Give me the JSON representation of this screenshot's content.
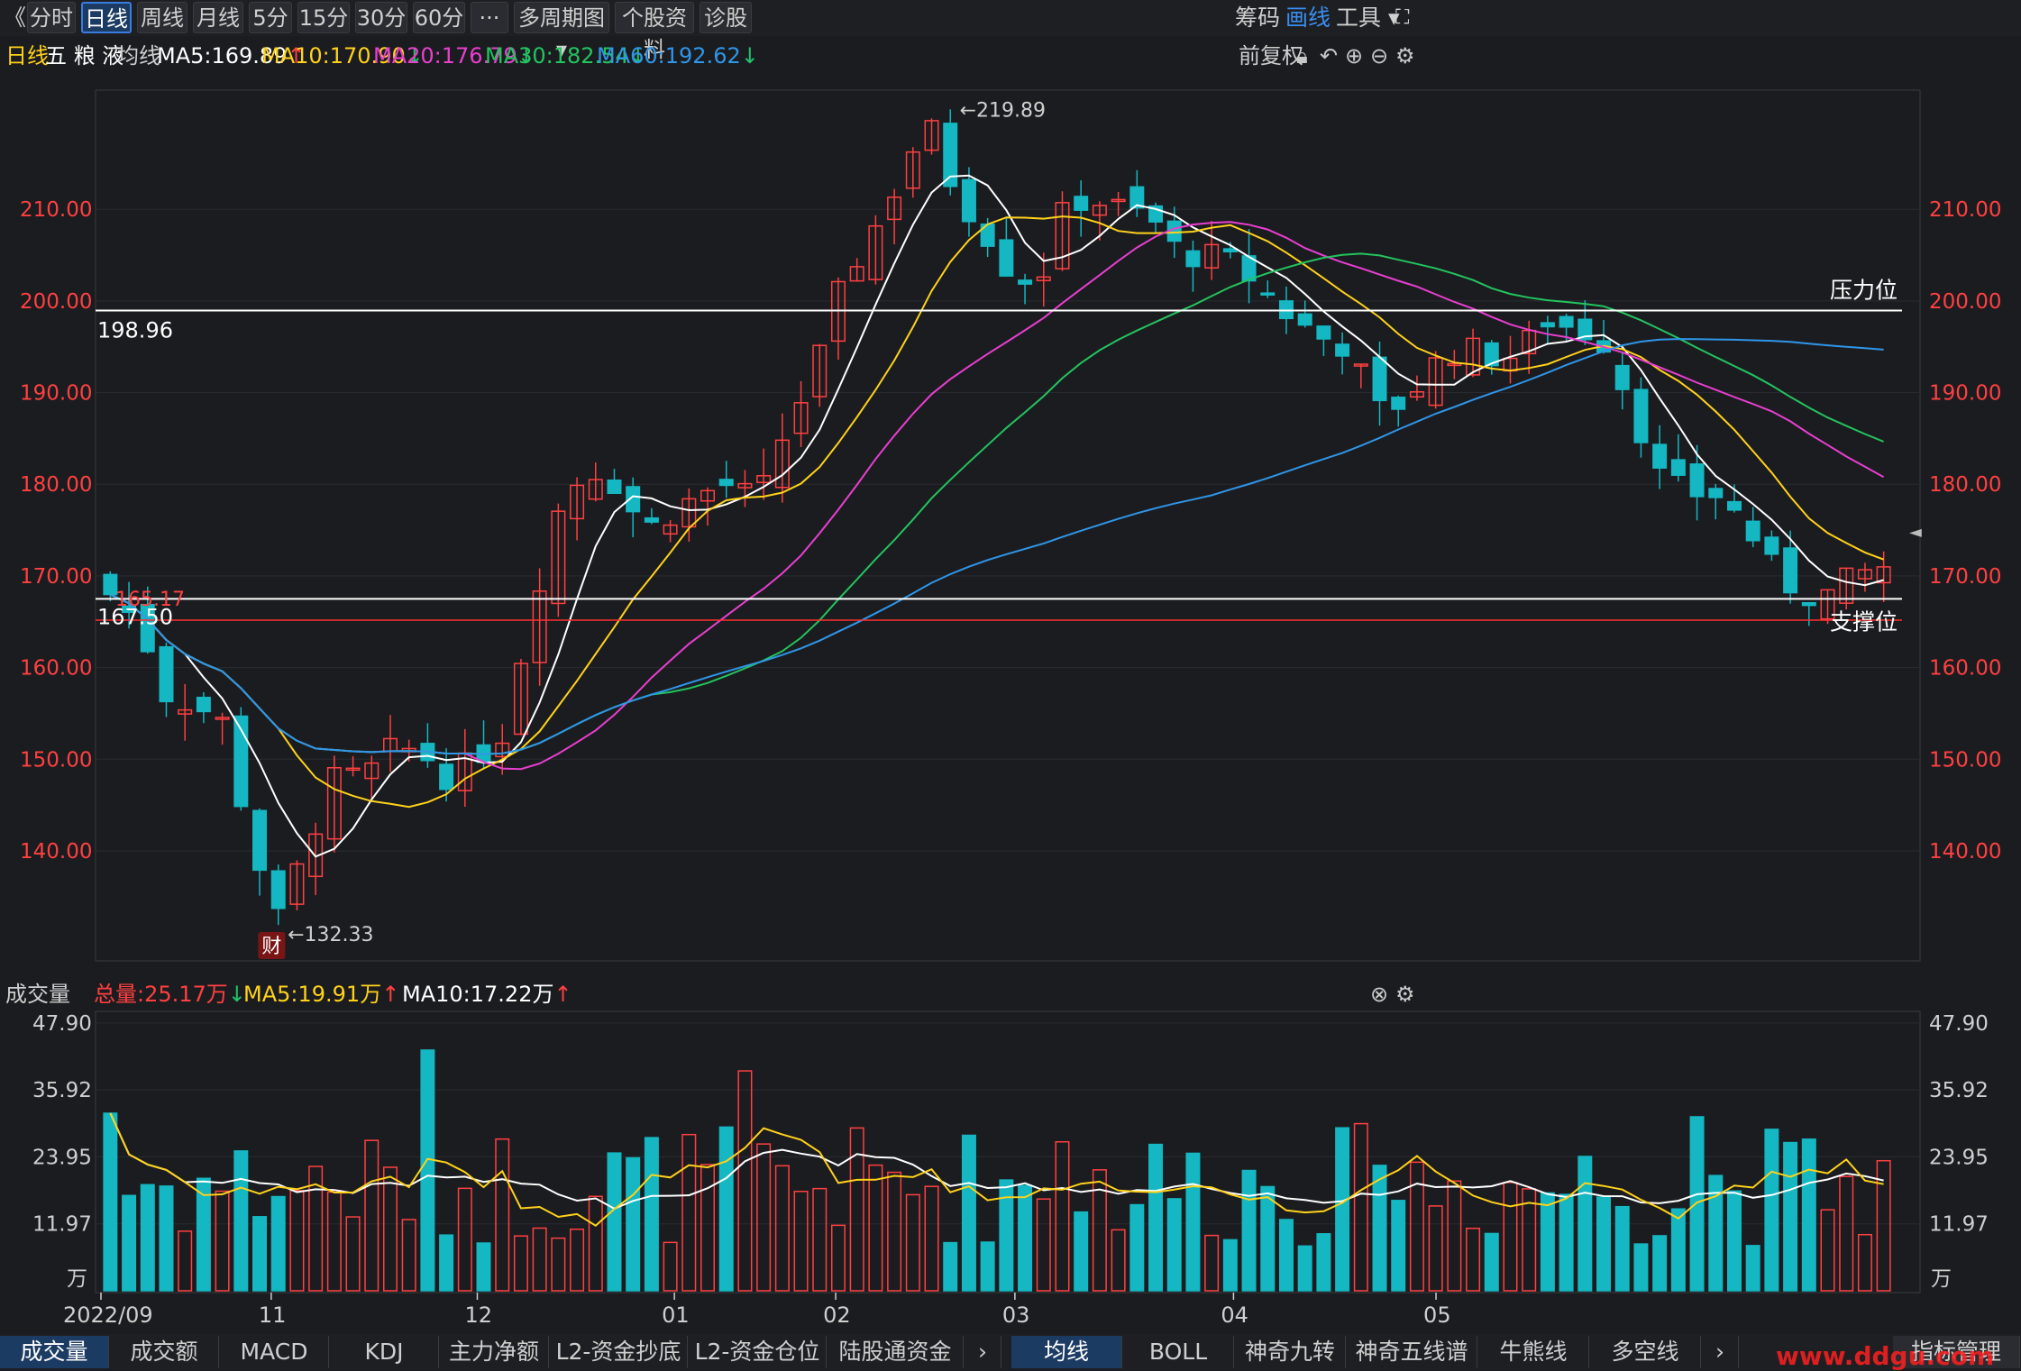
{
  "toolbar": {
    "back": "《",
    "tabs": [
      "分时",
      "日线",
      "周线",
      "月线",
      "5分",
      "15分",
      "30分",
      "60分",
      "···",
      "多周期图 ▾",
      "个股资料",
      "诊股"
    ],
    "active_tab": "日线",
    "right": [
      "筹码",
      "画线",
      "工具 ▾"
    ],
    "active_right": "画线"
  },
  "info": {
    "period": "日线",
    "stock_name": "五 粮 液",
    "ma_label": "均线",
    "ma5": "MA5:169.89",
    "ma10": "MA10:170.90",
    "ma20": "MA20:176.79",
    "ma30": "MA30:182.54",
    "ma60": "MA60:192.62",
    "fq": "前复权"
  },
  "colors": {
    "ma5": "#ffffff",
    "ma10": "#ffd21a",
    "ma20": "#e83fcf",
    "ma30": "#23c45e",
    "ma60": "#2f96e8",
    "up": "#ff4040",
    "down": "#14b7c2"
  },
  "price_axis": {
    "ticks": [
      "210.00",
      "200.00",
      "190.00",
      "180.00",
      "170.00",
      "160.00",
      "150.00",
      "140.00"
    ]
  },
  "annotations": {
    "high": "←219.89",
    "low": "←132.33",
    "resistance_value": "198.96",
    "resistance_label": "压力位",
    "support_value": "167.50",
    "support_label": "支撑位",
    "red_line_value": "165.17",
    "cai": "财"
  },
  "volume": {
    "label": "成交量",
    "total": "总量:25.17万",
    "ma5": "MA5:19.91万",
    "ma10": "MA10:17.22万",
    "ticks": [
      "47.90",
      "35.92",
      "23.95",
      "11.97"
    ],
    "unit": "万"
  },
  "x_axis": {
    "labels": [
      "2022/09",
      "11",
      "12",
      "01",
      "02",
      "03",
      "04",
      "05"
    ]
  },
  "bottom": {
    "left_tabs": [
      "成交量",
      "成交额",
      "MACD",
      "KDJ",
      "主力净额",
      "L2-资金抄底",
      "L2-资金仓位",
      "陆股通资金"
    ],
    "right_tabs": [
      "均线",
      "BOLL",
      "神奇九转",
      "神奇五线谱",
      "牛熊线",
      "多空线"
    ],
    "manage": "指标管理",
    "watermark": "www.ddgu.com"
  },
  "chart_data": {
    "type": "candlestick",
    "title": "五粮液 日线",
    "ylim": [
      128,
      223
    ],
    "vol_ylim": [
      0,
      49
    ],
    "n": 96,
    "anchors": [
      [
        0,
        168
      ],
      [
        3,
        165
      ],
      [
        6,
        157
      ],
      [
        9,
        156
      ],
      [
        12,
        154
      ],
      [
        15,
        141
      ],
      [
        18,
        132.3
      ],
      [
        21,
        141
      ],
      [
        24,
        148
      ],
      [
        27,
        148
      ],
      [
        30,
        151
      ],
      [
        33,
        151
      ],
      [
        36,
        148
      ],
      [
        39,
        150
      ],
      [
        42,
        153
      ],
      [
        45,
        167
      ],
      [
        48,
        178
      ],
      [
        51,
        182
      ],
      [
        54,
        180
      ],
      [
        57,
        175
      ],
      [
        60,
        177
      ],
      [
        63,
        179
      ],
      [
        66,
        180
      ],
      [
        69,
        178
      ],
      [
        72,
        186
      ],
      [
        75,
        192
      ],
      [
        78,
        202
      ],
      [
        81,
        207
      ],
      [
        84,
        213
      ],
      [
        87,
        219.9
      ],
      [
        90,
        212
      ],
      [
        93,
        208
      ],
      [
        96,
        203
      ],
      [
        99,
        202
      ],
      [
        102,
        211
      ],
      [
        105,
        211
      ],
      [
        108,
        210
      ],
      [
        111,
        209
      ],
      [
        114,
        205
      ],
      [
        117,
        205
      ],
      [
        120,
        204
      ],
      [
        123,
        201
      ],
      [
        126,
        198
      ],
      [
        129,
        196
      ],
      [
        132,
        195
      ],
      [
        135,
        188
      ],
      [
        138,
        189
      ],
      [
        141,
        193
      ],
      [
        144,
        195
      ],
      [
        147,
        194
      ],
      [
        150,
        194
      ],
      [
        153,
        198
      ],
      [
        156,
        197
      ],
      [
        159,
        196
      ],
      [
        162,
        189
      ],
      [
        165,
        181
      ],
      [
        168,
        179
      ],
      [
        171,
        179
      ],
      [
        174,
        176
      ],
      [
        177,
        171
      ],
      [
        180,
        168
      ],
      [
        183,
        168
      ],
      [
        186,
        170
      ],
      [
        189,
        171
      ]
    ],
    "resistance": 198.96,
    "support": 167.5,
    "support2": 165.17,
    "high": 219.89,
    "low": 132.33
  }
}
